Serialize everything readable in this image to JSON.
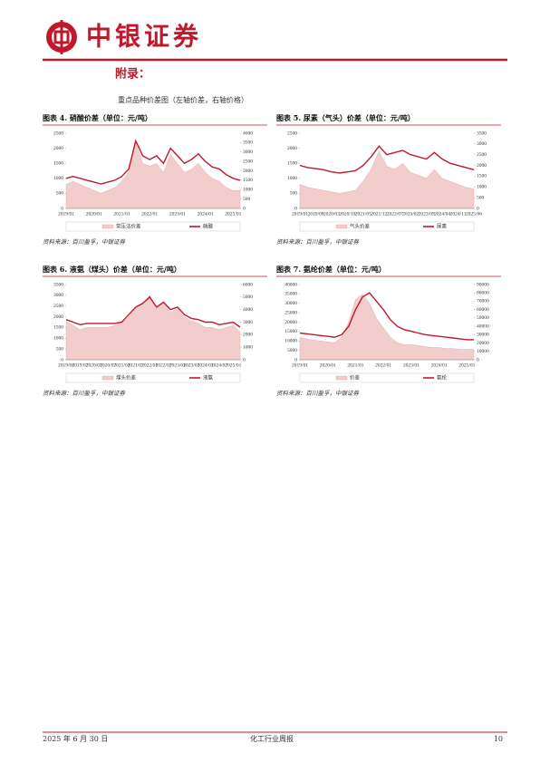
{
  "header": {
    "brand": "中银证券"
  },
  "section_title": "附录：",
  "subtitle": "重点品种价差图（左轴价差，右轴价格）",
  "footer": {
    "date": "2025 年 6 月 30 日",
    "report": "化工行业周报",
    "page": "10"
  },
  "chart_data": [
    {
      "type": "line",
      "title": "图表 4. 硝酸价差（单位：元/吨）",
      "source": "资料来源：百川盈孚，中银证券",
      "categories": [
        "2019/01",
        null,
        null,
        null,
        "2020/01",
        null,
        null,
        null,
        "2021/01",
        null,
        null,
        null,
        "2022/01",
        null,
        null,
        null,
        "2023/01",
        null,
        null,
        null,
        "2024/01",
        null,
        null,
        null,
        "2025/01",
        null
      ],
      "ylim": [
        0,
        2500
      ],
      "yticks": [
        0,
        500,
        1000,
        1500,
        2000,
        2500
      ],
      "y2lim": [
        0,
        4000
      ],
      "y2ticks": [
        0,
        500,
        1000,
        1500,
        2000,
        2500,
        3000,
        3500,
        4000
      ],
      "series": [
        {
          "name": "常压法价差",
          "type": "area",
          "color": "#f3cccc",
          "values": [
            800,
            900,
            800,
            700,
            600,
            500,
            600,
            700,
            900,
            1200,
            2200,
            1500,
            1400,
            1500,
            1200,
            1800,
            1500,
            1200,
            1300,
            1500,
            1200,
            1000,
            900,
            700,
            600,
            600
          ]
        },
        {
          "name": "硝酸",
          "type": "line",
          "axis": "y2",
          "color": "#c0182c",
          "values": [
            1600,
            1700,
            1600,
            1500,
            1400,
            1300,
            1400,
            1500,
            1700,
            2100,
            3600,
            2800,
            2600,
            2800,
            2400,
            3200,
            2800,
            2400,
            2600,
            2900,
            2500,
            2200,
            2100,
            1800,
            1600,
            1500
          ]
        }
      ]
    },
    {
      "type": "line",
      "title": "图表 5. 尿素（气头）价差（单位：元/吨）",
      "source": "资料来源：百川盈孚，中银证券",
      "categories": [
        "2019/01",
        null,
        "2019/08",
        null,
        "2020/03",
        null,
        "2020/10",
        null,
        "2021/05",
        null,
        "2021/12",
        null,
        "2022/07",
        null,
        "2023/02",
        null,
        "2023/09",
        null,
        "2024/04",
        null,
        "2024/11",
        null,
        "2025/06"
      ],
      "ylim": [
        0,
        2500
      ],
      "yticks": [
        0,
        500,
        1000,
        1500,
        2000,
        2500
      ],
      "y2lim": [
        0,
        3500
      ],
      "y2ticks": [
        0,
        500,
        1000,
        1500,
        2000,
        2500,
        3000,
        3500
      ],
      "series": [
        {
          "name": "气头价差",
          "type": "area",
          "color": "#f3cccc",
          "values": [
            800,
            700,
            650,
            600,
            550,
            500,
            550,
            600,
            900,
            1300,
            1900,
            1400,
            1300,
            1500,
            1200,
            1100,
            1000,
            1300,
            1000,
            900,
            800,
            700,
            650
          ]
        },
        {
          "name": "尿素",
          "type": "line",
          "axis": "y2",
          "color": "#c0182c",
          "values": [
            2000,
            1900,
            1850,
            1800,
            1700,
            1650,
            1700,
            1750,
            2000,
            2400,
            2900,
            2500,
            2600,
            2700,
            2500,
            2400,
            2300,
            2600,
            2300,
            2100,
            2000,
            1900,
            1800
          ]
        }
      ]
    },
    {
      "type": "line",
      "title": "图表 6. 液氨（煤头）价差（单位：元/吨）",
      "source": "资料来源：百川盈孚，中银证券",
      "categories": [
        "2019/01",
        null,
        "2019/07",
        null,
        "2020/01",
        null,
        "2020/07",
        null,
        "2021/01",
        null,
        "2021/07",
        null,
        "2022/01",
        null,
        "2022/07",
        null,
        "2023/01",
        null,
        "2023/07",
        null,
        "2024/01",
        null,
        "2024/07",
        null,
        "2025/01",
        null
      ],
      "ylim": [
        0,
        3500
      ],
      "yticks": [
        0,
        500,
        1000,
        1500,
        2000,
        2500,
        3000,
        3500
      ],
      "y2lim": [
        0,
        6000
      ],
      "y2ticks": [
        0,
        1000,
        2000,
        3000,
        4000,
        5000,
        6000
      ],
      "series": [
        {
          "name": "煤头价差",
          "type": "area",
          "color": "#f3cccc",
          "values": [
            1800,
            1600,
            1400,
            1500,
            1500,
            1500,
            1500,
            1600,
            1700,
            2000,
            2400,
            2600,
            3000,
            2400,
            2700,
            2200,
            2400,
            2000,
            1800,
            1700,
            1500,
            1500,
            1400,
            1500,
            1600,
            1300
          ]
        },
        {
          "name": "液氨",
          "type": "line",
          "axis": "y2",
          "color": "#c0182c",
          "values": [
            3200,
            3000,
            2800,
            2900,
            2900,
            2900,
            2900,
            2900,
            3000,
            3600,
            4200,
            4500,
            5000,
            4200,
            4600,
            4000,
            4200,
            3600,
            3300,
            3200,
            3000,
            3000,
            2800,
            2900,
            3000,
            2600
          ]
        }
      ]
    },
    {
      "type": "line",
      "title": "图表 7. 氨纶价差（单位：元/吨）",
      "source": "资料来源：百川盈孚，中银证券",
      "categories": [
        "2019/01",
        null,
        null,
        null,
        "2020/01",
        null,
        null,
        null,
        "2021/01",
        null,
        null,
        null,
        "2022/01",
        null,
        null,
        null,
        "2023/01",
        null,
        null,
        null,
        "2024/01",
        null,
        null,
        null,
        "2025/01",
        null
      ],
      "ylim": [
        0,
        40000
      ],
      "yticks": [
        0,
        5000,
        10000,
        15000,
        20000,
        25000,
        30000,
        35000,
        40000
      ],
      "y2lim": [
        0,
        90000
      ],
      "y2ticks": [
        0,
        10000,
        20000,
        30000,
        40000,
        50000,
        60000,
        70000,
        80000,
        90000
      ],
      "series": [
        {
          "name": "价差",
          "type": "area",
          "color": "#f3cccc",
          "values": [
            12000,
            11000,
            10500,
            10000,
            9500,
            9000,
            12000,
            20000,
            32000,
            35000,
            30000,
            22000,
            17000,
            12000,
            9000,
            8000,
            8000,
            7500,
            7000,
            6500,
            6500,
            6000,
            6000,
            5500,
            5500,
            5500
          ]
        },
        {
          "name": "氨纶",
          "type": "line",
          "axis": "y2",
          "color": "#c0182c",
          "values": [
            32000,
            31000,
            30000,
            29000,
            28000,
            27000,
            30000,
            40000,
            60000,
            75000,
            80000,
            70000,
            60000,
            48000,
            40000,
            36000,
            34000,
            32000,
            30000,
            29000,
            28000,
            27000,
            26000,
            25000,
            24000,
            24000
          ]
        }
      ]
    }
  ]
}
